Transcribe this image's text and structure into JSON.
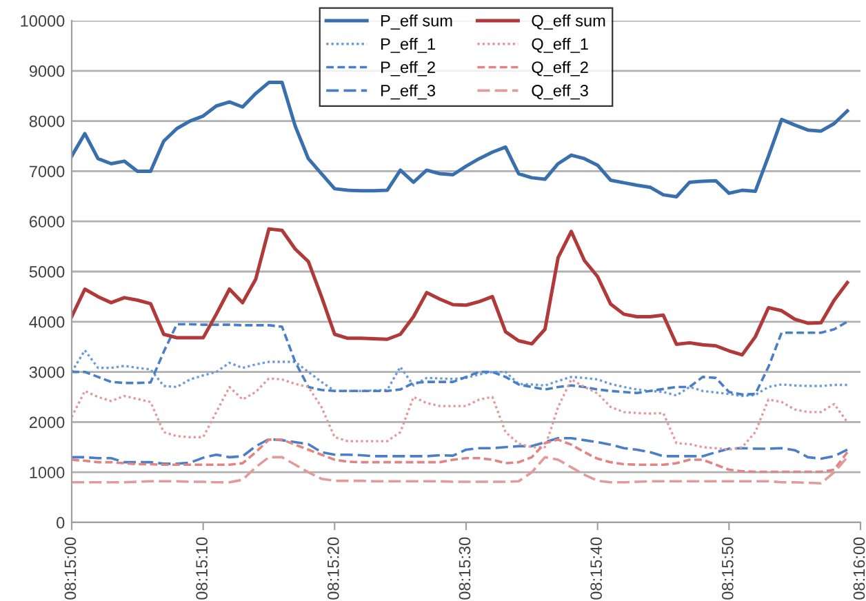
{
  "chart_data": {
    "type": "line",
    "categories": [
      "08:15:00",
      null,
      null,
      null,
      null,
      null,
      null,
      null,
      null,
      null,
      "08:15:10",
      null,
      null,
      null,
      null,
      null,
      null,
      null,
      null,
      null,
      "08:15:20",
      null,
      null,
      null,
      null,
      null,
      null,
      null,
      null,
      null,
      "08:15:30",
      null,
      null,
      null,
      null,
      null,
      null,
      null,
      null,
      null,
      "08:15:40",
      null,
      null,
      null,
      null,
      null,
      null,
      null,
      null,
      null,
      "08:15:50",
      null,
      null,
      null,
      null,
      null,
      null,
      null,
      null,
      null,
      "08:16:00"
    ],
    "ylim": [
      0,
      10000
    ],
    "yticks": [
      0,
      1000,
      2000,
      3000,
      4000,
      5000,
      6000,
      7000,
      8000,
      9000,
      10000
    ],
    "grid": "y",
    "legend": "top",
    "marker": "none",
    "series": [
      {
        "name": "P_eff sum",
        "color": "#3a6fad",
        "line_style": "solid",
        "values": [
          7300,
          7750,
          7250,
          7150,
          7200,
          7000,
          7000,
          7600,
          7850,
          8000,
          8100,
          8300,
          8380,
          8280,
          8550,
          8770,
          8770,
          7900,
          7250,
          6950,
          6650,
          6620,
          6610,
          6610,
          6620,
          7020,
          6780,
          7020,
          6950,
          6930,
          7100,
          7250,
          7380,
          7480,
          6950,
          6870,
          6840,
          7150,
          7320,
          7250,
          7120,
          6820,
          6770,
          6720,
          6680,
          6530,
          6490,
          6780,
          6800,
          6810,
          6560,
          6620,
          6600,
          7300,
          8030,
          7920,
          7820,
          7800,
          7950,
          8200,
          null
        ]
      },
      {
        "name": "Q_eff sum",
        "color": "#b03a3a",
        "line_style": "solid",
        "values": [
          4100,
          4650,
          4500,
          4380,
          4480,
          4430,
          4360,
          3750,
          3680,
          3680,
          3680,
          4150,
          4650,
          4380,
          4850,
          5850,
          5820,
          5450,
          5200,
          4500,
          3750,
          3670,
          3670,
          3660,
          3650,
          3750,
          4100,
          4580,
          4450,
          4340,
          4330,
          4400,
          4500,
          3800,
          3620,
          3560,
          3850,
          5280,
          5800,
          5220,
          4900,
          4350,
          4150,
          4100,
          4100,
          4130,
          3550,
          3580,
          3540,
          3520,
          3420,
          3340,
          3700,
          4280,
          4220,
          4050,
          3970,
          3980,
          4430,
          4780,
          null
        ]
      },
      {
        "name": "P_eff_1",
        "color": "#6b9bd8",
        "line_style": "dotted",
        "values": [
          3000,
          3430,
          3080,
          3080,
          3120,
          3080,
          3050,
          2720,
          2700,
          2850,
          2930,
          3000,
          3180,
          3080,
          3150,
          3200,
          3200,
          3200,
          3000,
          2800,
          2620,
          2620,
          2620,
          2630,
          2640,
          3100,
          2730,
          2880,
          2870,
          2860,
          2880,
          2950,
          3000,
          3000,
          2760,
          2750,
          2730,
          2820,
          2900,
          2880,
          2850,
          2760,
          2700,
          2650,
          2620,
          2600,
          2530,
          2700,
          2620,
          2590,
          2560,
          2520,
          2540,
          2700,
          2750,
          2730,
          2720,
          2720,
          2740,
          2740,
          null
        ]
      },
      {
        "name": "Q_eff_1",
        "color": "#e39a9a",
        "line_style": "dotted",
        "values": [
          2100,
          2620,
          2500,
          2420,
          2520,
          2460,
          2400,
          1800,
          1720,
          1700,
          1700,
          2200,
          2700,
          2450,
          2600,
          2870,
          2850,
          2760,
          2700,
          2300,
          1700,
          1620,
          1620,
          1620,
          1620,
          1800,
          2500,
          2380,
          2320,
          2320,
          2320,
          2450,
          2500,
          1800,
          1570,
          1500,
          1500,
          2300,
          2850,
          2700,
          2570,
          2300,
          2200,
          2180,
          2170,
          2180,
          1580,
          1560,
          1500,
          1480,
          1450,
          1500,
          1800,
          2450,
          2400,
          2250,
          2200,
          2200,
          2360,
          2000,
          null
        ]
      },
      {
        "name": "P_eff_2",
        "color": "#4a7fc8",
        "line_style": "dashed",
        "values": [
          3000,
          3000,
          2900,
          2800,
          2780,
          2780,
          2790,
          3400,
          3950,
          3950,
          3940,
          3940,
          3940,
          3930,
          3930,
          3930,
          3900,
          3200,
          2700,
          2640,
          2620,
          2620,
          2620,
          2620,
          2620,
          2650,
          2780,
          2800,
          2800,
          2800,
          2900,
          3000,
          3000,
          2900,
          2750,
          2700,
          2650,
          2700,
          2730,
          2700,
          2650,
          2620,
          2600,
          2580,
          2620,
          2660,
          2700,
          2700,
          2900,
          2880,
          2600,
          2550,
          2560,
          3100,
          3780,
          3780,
          3780,
          3780,
          3850,
          4000,
          null
        ]
      },
      {
        "name": "Q_eff_2",
        "color": "#e08585",
        "line_style": "dashed",
        "values": [
          1250,
          1230,
          1200,
          1200,
          1180,
          1160,
          1160,
          1150,
          1150,
          1150,
          1150,
          1150,
          1150,
          1180,
          1400,
          1650,
          1650,
          1550,
          1450,
          1350,
          1250,
          1210,
          1200,
          1200,
          1200,
          1200,
          1200,
          1200,
          1200,
          1250,
          1280,
          1280,
          1250,
          1180,
          1200,
          1300,
          1580,
          1650,
          1550,
          1400,
          1270,
          1200,
          1160,
          1150,
          1150,
          1150,
          1180,
          1250,
          1250,
          1150,
          1050,
          1020,
          1010,
          1010,
          1010,
          1010,
          1010,
          1010,
          1050,
          1400,
          null
        ]
      },
      {
        "name": "P_eff_3",
        "color": "#4a7fc8",
        "line_style": "longdash",
        "values": [
          1300,
          1300,
          1280,
          1280,
          1200,
          1200,
          1200,
          1170,
          1170,
          1190,
          1290,
          1350,
          1300,
          1320,
          1520,
          1660,
          1640,
          1600,
          1560,
          1400,
          1350,
          1350,
          1340,
          1320,
          1320,
          1320,
          1320,
          1320,
          1340,
          1330,
          1450,
          1480,
          1480,
          1500,
          1520,
          1520,
          1600,
          1680,
          1680,
          1640,
          1600,
          1550,
          1480,
          1450,
          1400,
          1320,
          1320,
          1320,
          1320,
          1400,
          1470,
          1480,
          1470,
          1470,
          1480,
          1440,
          1300,
          1270,
          1320,
          1450,
          null
        ]
      },
      {
        "name": "Q_eff_3",
        "color": "#e39a9a",
        "line_style": "longdash",
        "values": [
          800,
          800,
          800,
          800,
          800,
          810,
          820,
          820,
          820,
          810,
          810,
          800,
          800,
          850,
          1100,
          1300,
          1300,
          1150,
          1000,
          870,
          830,
          830,
          830,
          820,
          820,
          820,
          820,
          820,
          820,
          810,
          810,
          810,
          810,
          810,
          820,
          1000,
          1300,
          1250,
          1100,
          950,
          830,
          800,
          800,
          810,
          820,
          820,
          820,
          820,
          820,
          820,
          820,
          820,
          820,
          820,
          800,
          800,
          790,
          780,
          1000,
          1300,
          null
        ]
      }
    ]
  }
}
